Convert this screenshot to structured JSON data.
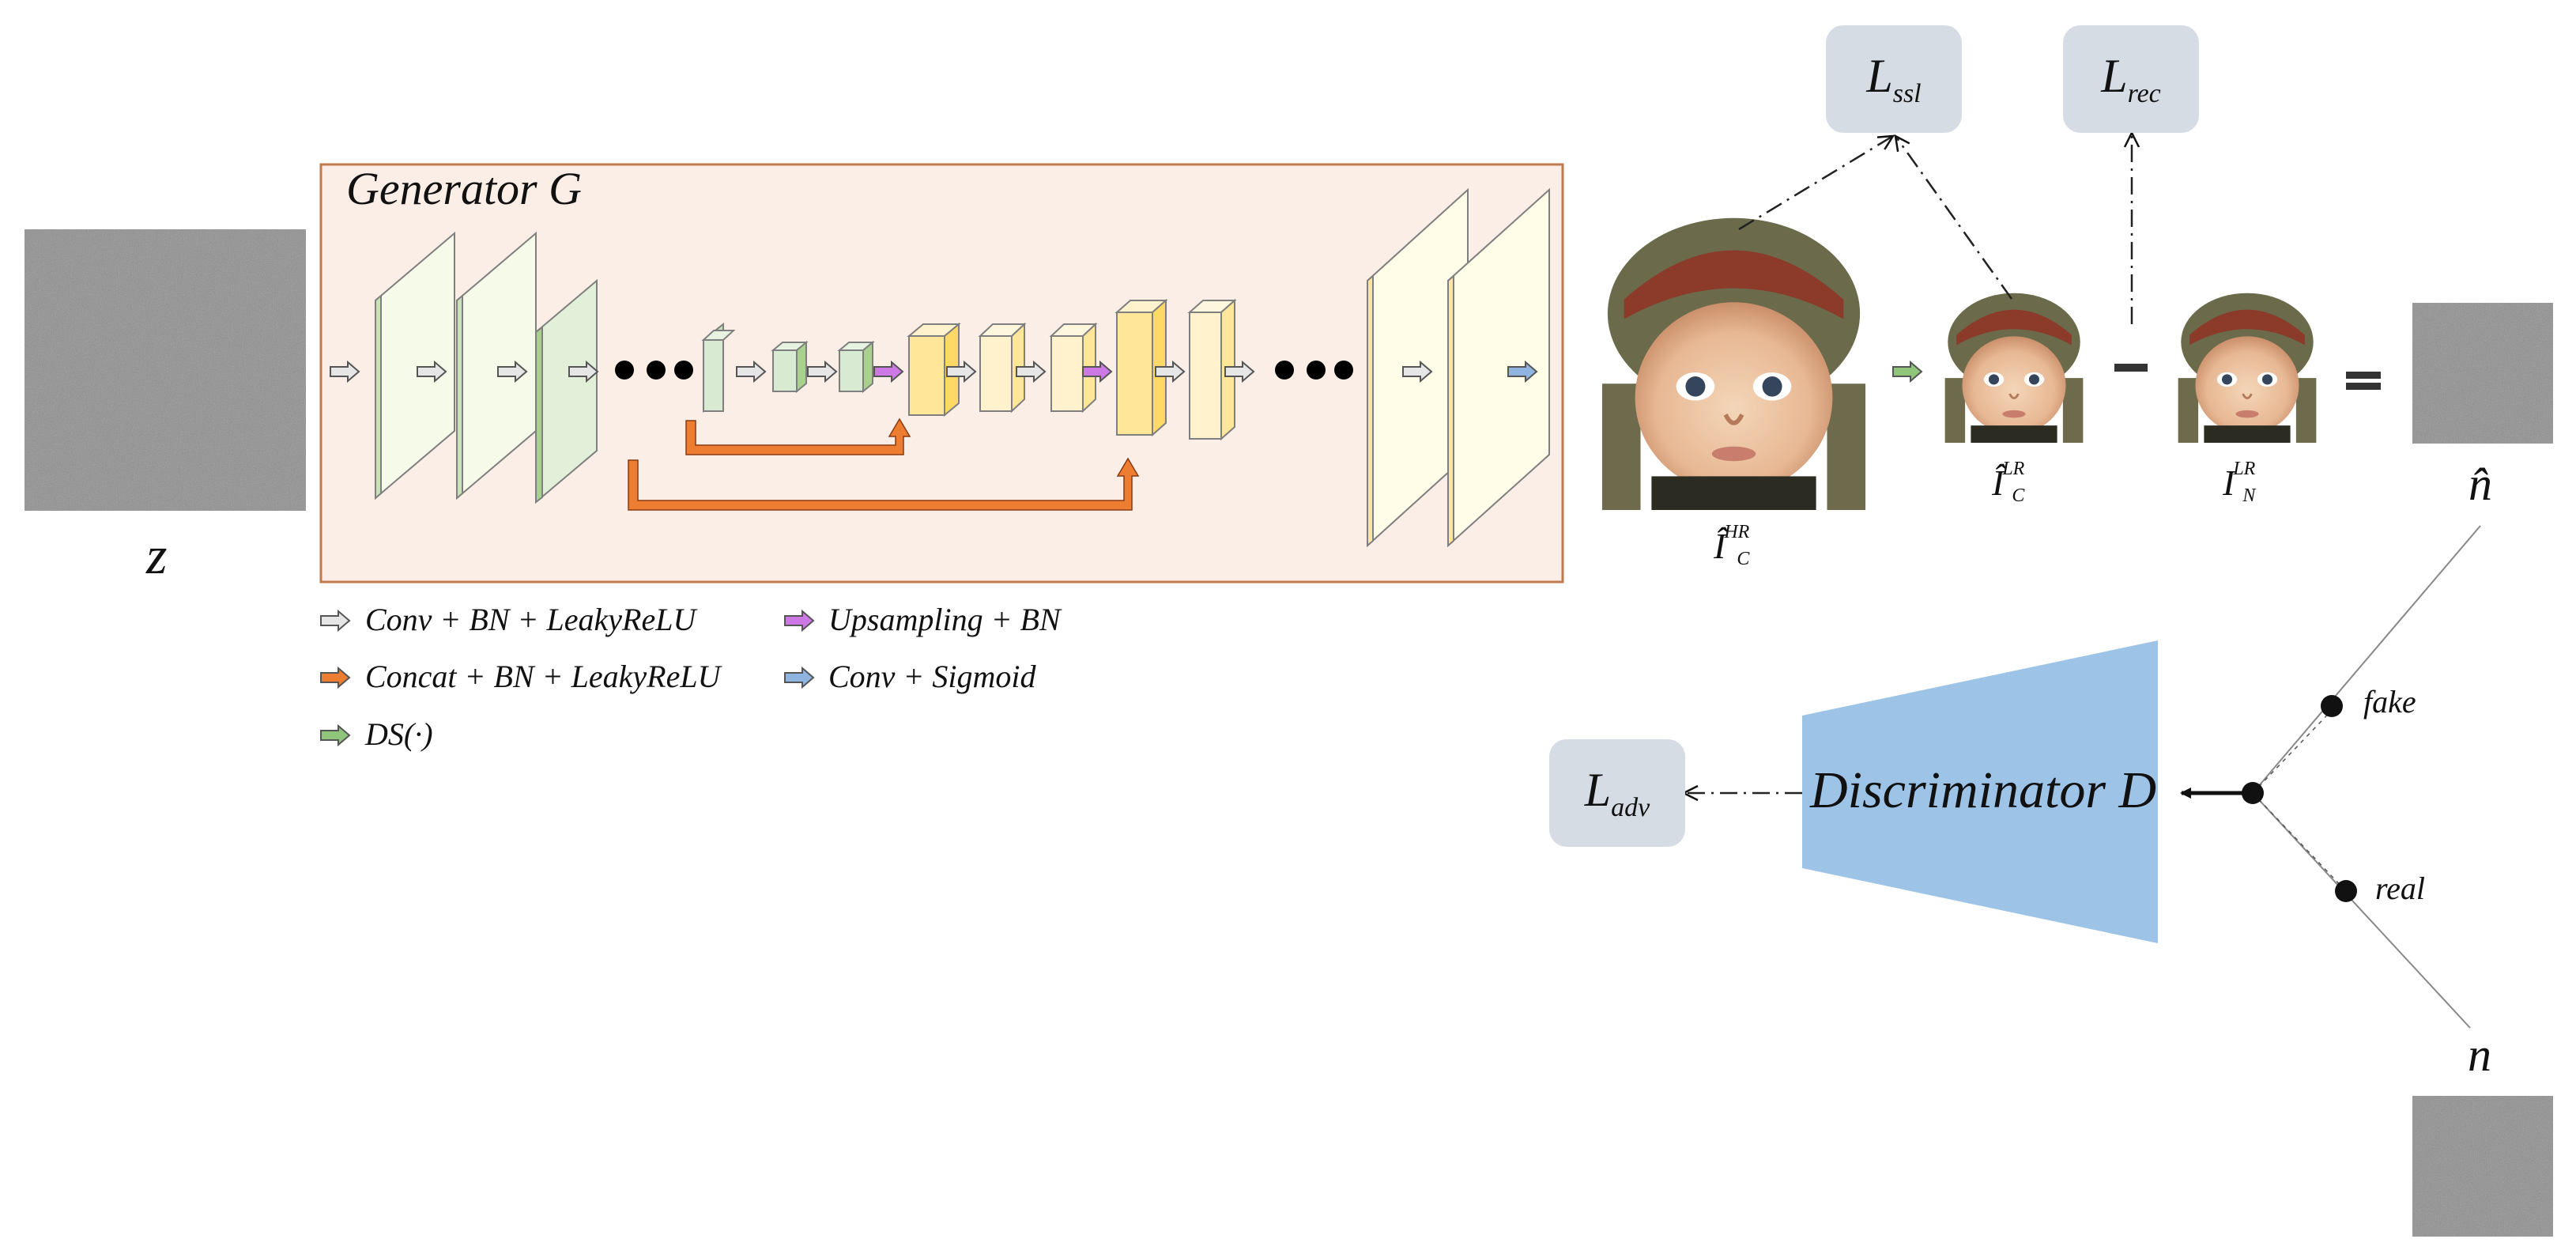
{
  "generator": {
    "title": "Generator G"
  },
  "inputs": {
    "z_label": "z"
  },
  "legend": [
    {
      "text": "Conv + BN + LeakyReLU",
      "color": "#e6e6e6"
    },
    {
      "text": "Concat + BN + LeakyReLU",
      "color": "#ed7d31"
    },
    {
      "text": "DS(·)",
      "color": "#8fc57a"
    },
    {
      "text": "Upsampling + BN",
      "color": "#cc79e6"
    },
    {
      "text": "Conv + Sigmoid",
      "color": "#8fb4e0"
    }
  ],
  "losses": {
    "ssl": {
      "main": "L",
      "sub": "ssl"
    },
    "rec": {
      "main": "L",
      "sub": "rec"
    },
    "adv": {
      "main": "L",
      "sub": "adv"
    }
  },
  "images": {
    "ic_hr": {
      "main": "Î",
      "sup": "HR",
      "sub": "C"
    },
    "ic_lr": {
      "main": "Î",
      "sup": "LR",
      "sub": "C"
    },
    "in_lr": {
      "main": "I",
      "sup": "LR",
      "sub": "N"
    }
  },
  "operators": {
    "minus": "−",
    "equals": "="
  },
  "noise": {
    "n_hat": "n̂",
    "n": "n"
  },
  "discriminator": {
    "title": "Discriminator D"
  },
  "branches": {
    "fake": "fake",
    "real": "real"
  },
  "colors": {
    "generator_bg": "#fbeee6",
    "generator_border": "#c07a50",
    "green_block": "#e2f0d9",
    "yellow_block": "#fff2cc",
    "light_yellow_block": "#fffde8",
    "loss_box": "#d6dce4",
    "discriminator": "#9dc3e6",
    "orange_skip": "#ed7d31"
  }
}
